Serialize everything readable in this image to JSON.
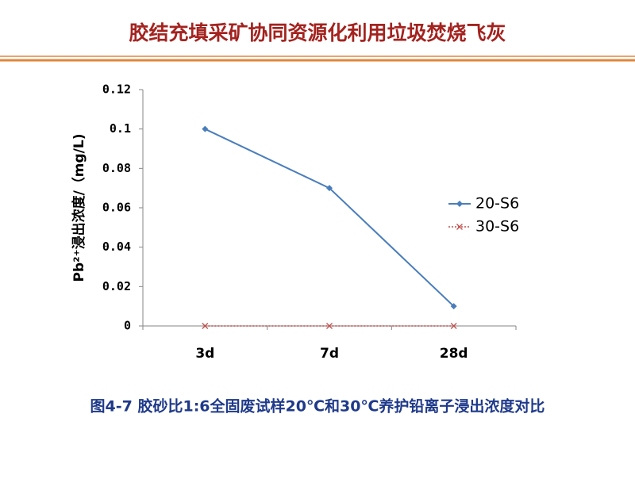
{
  "slide_title": "胶结充填采矿协同资源化利用垃圾焚烧飞灰",
  "caption": "图4-7 胶砂比1:6全固废试样20℃和30℃养护铅离子浸出浓度对比",
  "chart_data": {
    "type": "line",
    "y_label": "Pb²⁺浸出浓度/（mg/L)",
    "categories": [
      "3d",
      "7d",
      "28d"
    ],
    "series": [
      {
        "name": "20-S6",
        "color": "#4a7ebb",
        "marker": "diamond",
        "dash": "solid",
        "values": [
          0.1,
          0.07,
          0.01
        ]
      },
      {
        "name": "30-S6",
        "color": "#c0504d",
        "marker": "x",
        "dash": "dotted",
        "values": [
          0,
          0,
          0
        ]
      }
    ],
    "ylim": [
      0,
      0.12
    ],
    "yticks": [
      0,
      0.02,
      0.04,
      0.06,
      0.08,
      0.1,
      0.12
    ],
    "grid": false,
    "legend": "right"
  }
}
